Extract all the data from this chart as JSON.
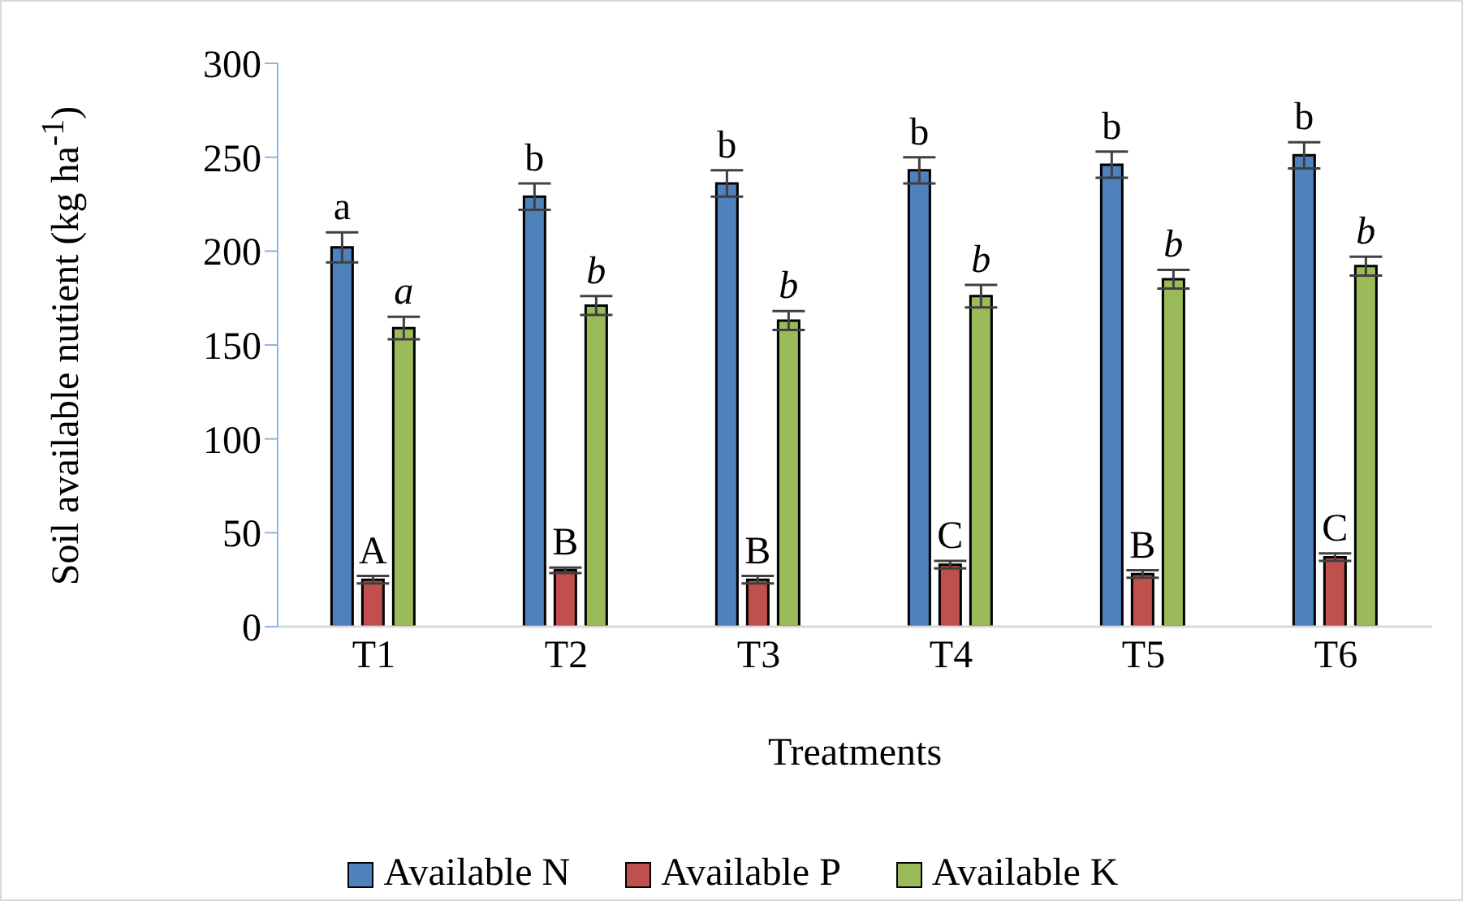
{
  "chart_data": {
    "type": "bar",
    "xlabel": "Treatments",
    "ylabel": "Soil available nutient (kg ha$^{-1}$)",
    "categories": [
      "T1",
      "T2",
      "T3",
      "T4",
      "T5",
      "T6"
    ],
    "series": [
      {
        "name": "Available N",
        "color": "#4f81bd",
        "values": [
          202,
          229,
          236,
          243,
          246,
          251
        ],
        "errors": [
          8,
          7,
          7,
          7,
          7,
          7
        ],
        "value_labels": [
          "a",
          "b",
          "b",
          "b",
          "b",
          "b"
        ]
      },
      {
        "name": "Available P",
        "color": "#c0504d",
        "values": [
          25,
          30,
          25,
          33,
          28,
          37
        ],
        "errors": [
          2,
          1.5,
          2,
          2,
          2,
          2
        ],
        "value_labels": [
          "A",
          "B",
          "B",
          "C",
          "B",
          "C"
        ]
      },
      {
        "name": "Available K",
        "color": "#9bbb59",
        "values": [
          159,
          171,
          163,
          176,
          185,
          192
        ],
        "errors": [
          6,
          5,
          5,
          6,
          5,
          5
        ],
        "value_labels": [
          "a",
          "b",
          "b",
          "b",
          "b",
          "b"
        ]
      }
    ],
    "ylim": [
      0,
      300
    ],
    "yticks": [
      0,
      50,
      100,
      150,
      200,
      250,
      300
    ],
    "grid": false,
    "legend": "bottom"
  }
}
